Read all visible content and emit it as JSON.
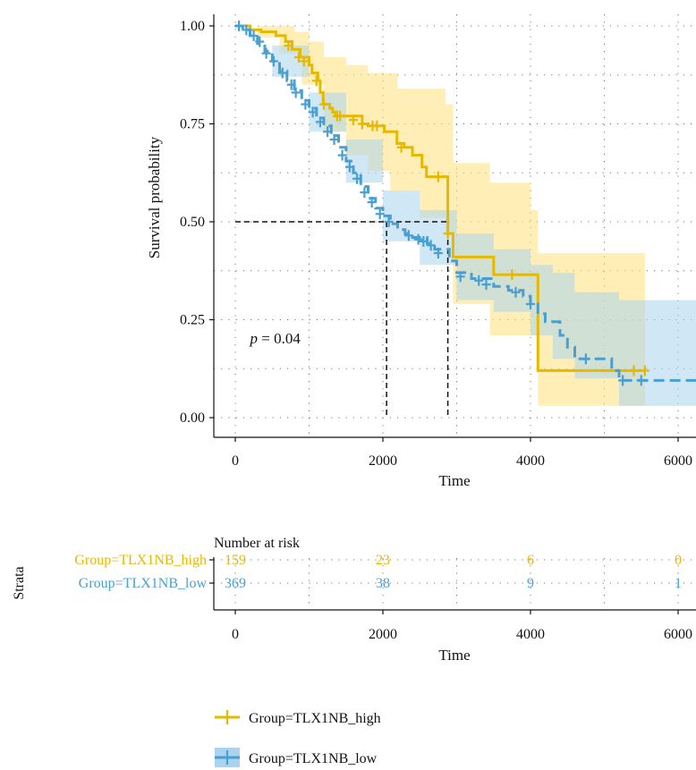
{
  "colors": {
    "high": "#E7B800",
    "low": "#4A9FD0",
    "high_ci": "#FFE27A",
    "low_ci": "#A9D3EE",
    "text": "#111111",
    "grid": "#777777"
  },
  "chart_data": [
    {
      "type": "line",
      "subtype": "kaplan-meier",
      "xlabel": "Time",
      "ylabel": "Survival probability",
      "xlim": [
        -200,
        6300
      ],
      "ylim": [
        -0.05,
        1.03
      ],
      "xticks": [
        "0",
        "2000",
        "4000",
        "6000"
      ],
      "xtick_values": [
        0,
        2000,
        4000,
        6000
      ],
      "yticks": [
        "0.00",
        "0.25",
        "0.50",
        "0.75",
        "1.00"
      ],
      "ytick_values": [
        0,
        0.25,
        0.5,
        0.75,
        1.0
      ],
      "grid": true,
      "annotation": {
        "prefix": "p",
        "text": " = 0.04",
        "x": 200,
        "y": 0.19
      },
      "median_lines": [
        {
          "x": 2050,
          "y": 0.5
        },
        {
          "x": 2880,
          "y": 0.5
        }
      ],
      "series": [
        {
          "name": "Group=TLX1NB_high",
          "color": "#E7B800",
          "style": "solid",
          "steps": [
            [
              0,
              1.0
            ],
            [
              200,
              0.99
            ],
            [
              350,
              0.985
            ],
            [
              550,
              0.975
            ],
            [
              680,
              0.96
            ],
            [
              770,
              0.94
            ],
            [
              880,
              0.92
            ],
            [
              1000,
              0.9
            ],
            [
              1040,
              0.88
            ],
            [
              1120,
              0.86
            ],
            [
              1150,
              0.83
            ],
            [
              1190,
              0.8
            ],
            [
              1280,
              0.79
            ],
            [
              1320,
              0.78
            ],
            [
              1360,
              0.77
            ],
            [
              1600,
              0.77
            ],
            [
              1720,
              0.75
            ],
            [
              1800,
              0.745
            ],
            [
              1980,
              0.745
            ],
            [
              2020,
              0.73
            ],
            [
              2190,
              0.7
            ],
            [
              2290,
              0.69
            ],
            [
              2400,
              0.67
            ],
            [
              2530,
              0.64
            ],
            [
              2590,
              0.615
            ],
            [
              2880,
              0.615
            ],
            [
              2880,
              0.47
            ],
            [
              2950,
              0.41
            ],
            [
              3500,
              0.41
            ],
            [
              3500,
              0.365
            ],
            [
              4030,
              0.365
            ],
            [
              4100,
              0.12
            ],
            [
              5550,
              0.12
            ]
          ],
          "censor": [
            [
              720,
              0.95
            ],
            [
              860,
              0.92
            ],
            [
              930,
              0.91
            ],
            [
              1100,
              0.86
            ],
            [
              1200,
              0.8
            ],
            [
              1380,
              0.77
            ],
            [
              1420,
              0.77
            ],
            [
              1600,
              0.76
            ],
            [
              1720,
              0.75
            ],
            [
              1860,
              0.745
            ],
            [
              1920,
              0.745
            ],
            [
              2250,
              0.69
            ],
            [
              2750,
              0.615
            ],
            [
              2880,
              0.47
            ],
            [
              3750,
              0.365
            ],
            [
              5400,
              0.12
            ],
            [
              5550,
              0.12
            ]
          ],
          "ci_upper": [
            [
              0,
              1.0
            ],
            [
              500,
              1.0
            ],
            [
              800,
              0.985
            ],
            [
              1000,
              0.96
            ],
            [
              1200,
              0.92
            ],
            [
              1500,
              0.9
            ],
            [
              1800,
              0.88
            ],
            [
              2200,
              0.84
            ],
            [
              2600,
              0.84
            ],
            [
              2850,
              0.8
            ],
            [
              2950,
              0.65
            ],
            [
              3450,
              0.65
            ],
            [
              3450,
              0.6
            ],
            [
              4000,
              0.6
            ],
            [
              4000,
              0.53
            ],
            [
              4100,
              0.42
            ],
            [
              5550,
              0.42
            ]
          ],
          "ci_lower": [
            [
              0,
              1.0
            ],
            [
              300,
              0.97
            ],
            [
              600,
              0.93
            ],
            [
              900,
              0.85
            ],
            [
              1200,
              0.73
            ],
            [
              1500,
              0.67
            ],
            [
              1800,
              0.63
            ],
            [
              2100,
              0.58
            ],
            [
              2500,
              0.51
            ],
            [
              2850,
              0.47
            ],
            [
              2950,
              0.29
            ],
            [
              3450,
              0.29
            ],
            [
              3450,
              0.21
            ],
            [
              4000,
              0.21
            ],
            [
              4100,
              0.03
            ],
            [
              5550,
              0.03
            ]
          ]
        },
        {
          "name": "Group=TLX1NB_low",
          "color": "#4A9FD0",
          "style": "dashed",
          "steps": [
            [
              0,
              1.0
            ],
            [
              100,
              0.99
            ],
            [
              200,
              0.975
            ],
            [
              300,
              0.955
            ],
            [
              400,
              0.935
            ],
            [
              500,
              0.91
            ],
            [
              600,
              0.885
            ],
            [
              700,
              0.86
            ],
            [
              800,
              0.835
            ],
            [
              900,
              0.81
            ],
            [
              1000,
              0.79
            ],
            [
              1100,
              0.765
            ],
            [
              1200,
              0.745
            ],
            [
              1300,
              0.72
            ],
            [
              1400,
              0.69
            ],
            [
              1500,
              0.655
            ],
            [
              1600,
              0.625
            ],
            [
              1700,
              0.59
            ],
            [
              1800,
              0.56
            ],
            [
              1900,
              0.535
            ],
            [
              2000,
              0.515
            ],
            [
              2100,
              0.495
            ],
            [
              2200,
              0.48
            ],
            [
              2300,
              0.47
            ],
            [
              2400,
              0.46
            ],
            [
              2600,
              0.445
            ],
            [
              2700,
              0.43
            ],
            [
              2900,
              0.4
            ],
            [
              3000,
              0.37
            ],
            [
              3200,
              0.355
            ],
            [
              3500,
              0.335
            ],
            [
              3700,
              0.325
            ],
            [
              3900,
              0.31
            ],
            [
              4000,
              0.29
            ],
            [
              4100,
              0.265
            ],
            [
              4200,
              0.245
            ],
            [
              4400,
              0.21
            ],
            [
              4500,
              0.18
            ],
            [
              4600,
              0.15
            ],
            [
              5100,
              0.12
            ],
            [
              5200,
              0.095
            ],
            [
              6300,
              0.095
            ]
          ],
          "censor": [
            [
              50,
              1.0
            ],
            [
              150,
              0.99
            ],
            [
              250,
              0.975
            ],
            [
              330,
              0.96
            ],
            [
              420,
              0.93
            ],
            [
              520,
              0.91
            ],
            [
              640,
              0.88
            ],
            [
              760,
              0.85
            ],
            [
              820,
              0.83
            ],
            [
              950,
              0.8
            ],
            [
              1050,
              0.78
            ],
            [
              1150,
              0.755
            ],
            [
              1250,
              0.73
            ],
            [
              1340,
              0.71
            ],
            [
              1450,
              0.67
            ],
            [
              1550,
              0.64
            ],
            [
              1650,
              0.61
            ],
            [
              1750,
              0.575
            ],
            [
              1850,
              0.55
            ],
            [
              1960,
              0.52
            ],
            [
              2080,
              0.5
            ],
            [
              2350,
              0.465
            ],
            [
              2480,
              0.455
            ],
            [
              2550,
              0.45
            ],
            [
              2650,
              0.44
            ],
            [
              2750,
              0.42
            ],
            [
              3050,
              0.36
            ],
            [
              3300,
              0.35
            ],
            [
              3400,
              0.34
            ],
            [
              3800,
              0.32
            ],
            [
              4000,
              0.29
            ],
            [
              4750,
              0.15
            ],
            [
              5250,
              0.095
            ],
            [
              5500,
              0.095
            ]
          ],
          "ci_upper": [
            [
              0,
              1.0
            ],
            [
              500,
              0.95
            ],
            [
              1000,
              0.83
            ],
            [
              1500,
              0.71
            ],
            [
              2000,
              0.58
            ],
            [
              2500,
              0.53
            ],
            [
              3000,
              0.47
            ],
            [
              3500,
              0.43
            ],
            [
              4000,
              0.39
            ],
            [
              4300,
              0.37
            ],
            [
              4600,
              0.32
            ],
            [
              5200,
              0.3
            ],
            [
              6300,
              0.3
            ]
          ],
          "ci_lower": [
            [
              0,
              1.0
            ],
            [
              500,
              0.87
            ],
            [
              1000,
              0.73
            ],
            [
              1500,
              0.6
            ],
            [
              2000,
              0.45
            ],
            [
              2500,
              0.39
            ],
            [
              3000,
              0.3
            ],
            [
              3500,
              0.27
            ],
            [
              4000,
              0.21
            ],
            [
              4300,
              0.15
            ],
            [
              4600,
              0.1
            ],
            [
              5200,
              0.03
            ],
            [
              6300,
              0.03
            ]
          ]
        }
      ]
    },
    {
      "type": "table",
      "title": "Number at risk",
      "ylabel": "Strata",
      "xlabel": "Time",
      "xticks": [
        "0",
        "2000",
        "4000",
        "6000"
      ],
      "xtick_values": [
        0,
        2000,
        4000,
        6000
      ],
      "rows": [
        {
          "label": "Group=TLX1NB_high",
          "color": "#E7B800",
          "values": [
            "159",
            "23",
            "6",
            "0"
          ]
        },
        {
          "label": "Group=TLX1NB_low",
          "color": "#4A9FD0",
          "values": [
            "369",
            "38",
            "9",
            "1"
          ]
        }
      ]
    }
  ],
  "legend": [
    {
      "label": "Group=TLX1NB_high",
      "color": "#E7B800"
    },
    {
      "label": "Group=TLX1NB_low",
      "color": "#4A9FD0"
    }
  ]
}
